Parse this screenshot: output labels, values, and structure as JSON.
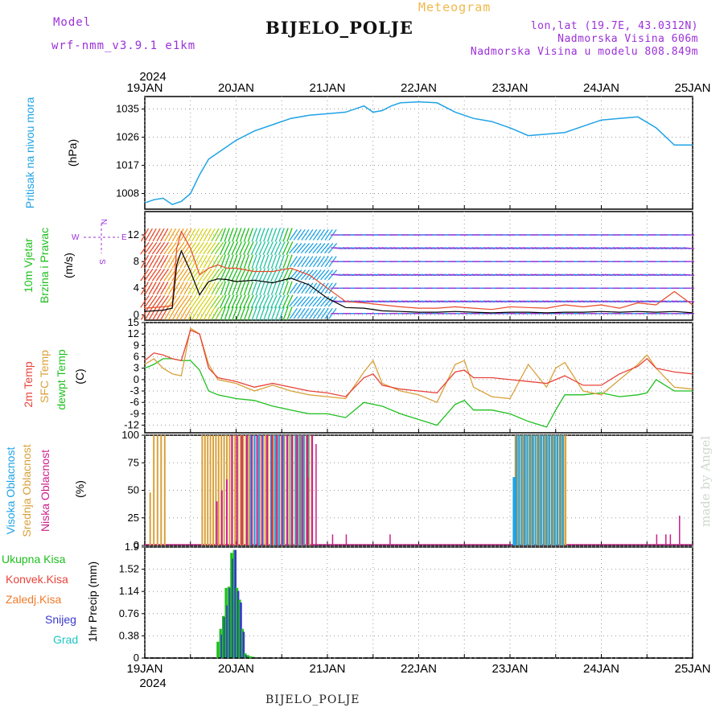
{
  "header": {
    "model_label": "Model",
    "model_name": "wrf-nmm_v3.9.1  e1km",
    "title": "BIJELO_POLJE",
    "meteogram_label": "Meteogram",
    "lonlat": "lon,lat (19.7E, 43.0312N)",
    "elevation": "Nadmorska Visina 606m",
    "model_elevation": "Nadmorska Visina u modelu 808.849m",
    "footer_station": "BIJELO_POLJE",
    "credit": "made by Angel"
  },
  "colors": {
    "pressure": "#1fa3e6",
    "temp2m": "#e8433a",
    "sfc": "#d9a13a",
    "dewpt": "#1fbf1f",
    "high_cloud": "#1fa3e6",
    "mid_cloud": "#d9a13a",
    "low_cloud": "#cc1f8c",
    "total_precip": "#1fbf1f",
    "snow": "#3838d0",
    "hail": "#1fc4c4",
    "wind_speed": "#000000",
    "gust": "#e84a2a",
    "purple_text": "#9b30d9"
  },
  "time_axis": {
    "year": "2024",
    "day_labels": [
      "19JAN",
      "20JAN",
      "21JAN",
      "22JAN",
      "23JAN",
      "24JAN",
      "25JAN"
    ]
  },
  "chart_data": [
    {
      "type": "line",
      "panel": "pressure",
      "ylabel_lines": [
        "Pritisak na nivou mora",
        "(hPa)"
      ],
      "yticks": [
        "1035",
        "1026",
        "1017",
        "1008"
      ],
      "ylim": [
        1003,
        1039
      ],
      "x_days": [
        0,
        0.1,
        0.2,
        0.3,
        0.4,
        0.5,
        0.6,
        0.7,
        0.8,
        0.9,
        1.0,
        1.2,
        1.4,
        1.6,
        1.8,
        2.0,
        2.2,
        2.4,
        2.5,
        2.6,
        2.7,
        2.8,
        3.0,
        3.2,
        3.4,
        3.6,
        3.8,
        4.0,
        4.2,
        4.4,
        4.6,
        4.8,
        5.0,
        5.2,
        5.4,
        5.6,
        5.8,
        6.0
      ],
      "series": [
        {
          "values": [
            1005,
            1006,
            1006.5,
            1004.5,
            1005.5,
            1008,
            1014,
            1019,
            1021,
            1023,
            1025,
            1028,
            1030,
            1032,
            1033,
            1033.5,
            1034,
            1036,
            1034,
            1034.5,
            1036,
            1037,
            1037.3,
            1037,
            1034,
            1032,
            1031,
            1029,
            1026.5,
            1027,
            1027.5,
            1029.5,
            1031.5,
            1032,
            1032.5,
            1029,
            1023.5,
            1023.5
          ]
        }
      ]
    },
    {
      "type": "line",
      "panel": "wind",
      "ylabel_lines": [
        "10m Vjetar",
        "Brzina i Pravac",
        "(m/s)"
      ],
      "compass": [
        "N",
        "E",
        "W",
        "S"
      ],
      "yticks": [
        "12",
        "8",
        "4",
        "0"
      ],
      "ylim": [
        -0.8,
        15.5
      ],
      "x_days": [
        0,
        0.2,
        0.3,
        0.35,
        0.4,
        0.5,
        0.6,
        0.7,
        0.8,
        0.9,
        1.0,
        1.2,
        1.4,
        1.6,
        1.8,
        2.0,
        2.2,
        2.4,
        2.6,
        2.8,
        3.0,
        3.2,
        3.4,
        3.6,
        3.8,
        4.0,
        4.2,
        4.4,
        4.6,
        4.8,
        5.0,
        5.2,
        5.4,
        5.6,
        5.8,
        6.0
      ],
      "series": [
        {
          "values": [
            0.5,
            0.7,
            1.0,
            7.5,
            9.6,
            6.5,
            3.0,
            5.0,
            5.4,
            5.3,
            5.0,
            5.2,
            4.8,
            5.5,
            4.5,
            2.5,
            1.1,
            1.0,
            0.6,
            0.5,
            0.4,
            0.4,
            0.5,
            0.4,
            0.3,
            0.4,
            0.4,
            0.3,
            0.4,
            0.4,
            0.5,
            0.4,
            0.5,
            0.4,
            0.5,
            0.3
          ]
        },
        {
          "values": [
            1.0,
            1.2,
            1.4,
            10,
            12.5,
            10,
            6,
            7,
            7.5,
            7,
            7,
            6.5,
            6.5,
            7,
            6,
            4,
            2,
            1.8,
            1.5,
            1.2,
            1.0,
            1.0,
            1.2,
            1.0,
            0.8,
            1.2,
            1.1,
            1.0,
            1.5,
            1.2,
            1.5,
            1.0,
            1.8,
            1.5,
            3.5,
            1.5
          ]
        }
      ]
    },
    {
      "type": "line",
      "panel": "temperature",
      "ylabel_lines": [
        "2m Temp",
        "SFC Temp",
        "dewpt Temp",
        "(C)"
      ],
      "yticks": [
        "15",
        "12",
        "9",
        "6",
        "3",
        "0",
        "-3",
        "-6",
        "-9",
        "-12"
      ],
      "ylim": [
        -14,
        15
      ],
      "x_days": [
        0,
        0.1,
        0.2,
        0.3,
        0.4,
        0.5,
        0.6,
        0.7,
        0.8,
        1.0,
        1.2,
        1.4,
        1.6,
        1.8,
        2.0,
        2.2,
        2.4,
        2.5,
        2.6,
        2.8,
        3.0,
        3.2,
        3.4,
        3.5,
        3.6,
        3.8,
        4.0,
        4.2,
        4.4,
        4.5,
        4.6,
        4.8,
        5.0,
        5.2,
        5.4,
        5.5,
        5.6,
        5.8,
        6.0
      ],
      "series": [
        {
          "values": [
            5,
            7,
            6.5,
            5.5,
            5,
            13,
            12,
            3,
            0.5,
            -0.5,
            -2,
            -1,
            -2,
            -3,
            -3.5,
            -4.5,
            0.5,
            1.5,
            -1.5,
            -2.5,
            -3,
            -3.5,
            2,
            2.5,
            0.5,
            0.5,
            0,
            -0.5,
            -1,
            0,
            1,
            -1.5,
            -1.5,
            1.5,
            3.5,
            5.5,
            3,
            2,
            1.5
          ]
        },
        {
          "values": [
            4,
            5.5,
            3,
            1.5,
            1,
            13.5,
            12,
            4,
            0,
            -1,
            -3,
            -1.5,
            -3,
            -4,
            -4.5,
            -5,
            2,
            5,
            -1,
            -3,
            -4,
            -6,
            4,
            5,
            -2,
            -4.5,
            -5,
            4,
            -2,
            3,
            4.5,
            -3,
            -4,
            0,
            4,
            6.5,
            3,
            -2,
            -2.5
          ]
        },
        {
          "values": [
            3,
            4,
            5.5,
            5.5,
            5,
            5,
            2.5,
            -3,
            -4,
            -5,
            -5.5,
            -7,
            -8,
            -9,
            -9,
            -10,
            -6,
            -6.5,
            -7,
            -9,
            -10.5,
            -12,
            -6.5,
            -5.5,
            -8,
            -8,
            -9,
            -11,
            -12.5,
            -8,
            -4,
            -4,
            -3.5,
            -4.5,
            -4,
            -3.5,
            0,
            -3,
            -3
          ]
        }
      ]
    },
    {
      "type": "bar",
      "panel": "cloud_cover",
      "ylabel_lines": [
        "Visoka Oblacnost",
        "Srednja Oblacnost",
        "Niska Oblacnost",
        "(%)"
      ],
      "yticks": [
        "100",
        "75",
        "50",
        "25",
        "0"
      ],
      "ylim": [
        0,
        100
      ],
      "groups": [
        {
          "series": "Srednja Oblacnost",
          "x_start": 0.05,
          "x_end": 0.22,
          "step": 0.04,
          "values": [
            48,
            100,
            100,
            100,
            100
          ]
        },
        {
          "series": "Srednja Oblacnost",
          "x_start": 0.62,
          "x_end": 1.84,
          "step": 0.03,
          "values": [
            100
          ]
        },
        {
          "series": "Visoka Oblacnost",
          "x_start": 1.15,
          "x_end": 1.8,
          "step": 0.045,
          "values": [
            100
          ]
        },
        {
          "series": "Niska Oblacnost",
          "x_start": 0.78,
          "x_end": 1.85,
          "step": 0.055,
          "values": [
            40,
            50,
            60,
            100
          ]
        },
        {
          "series": "Srednja Oblacnost",
          "x_start": 4.05,
          "x_end": 4.62,
          "step": 0.022,
          "values": [
            100
          ]
        },
        {
          "series": "Visoka Oblacnost",
          "x_start": 4.03,
          "x_end": 4.58,
          "step": 0.03,
          "values": [
            62,
            100
          ]
        }
      ],
      "isolated_low": [
        [
          2.05,
          10
        ],
        [
          2.2,
          10
        ],
        [
          2.68,
          10
        ],
        [
          5.6,
          10
        ],
        [
          5.7,
          10
        ],
        [
          5.75,
          10
        ],
        [
          5.85,
          27
        ],
        [
          1.87,
          92
        ],
        [
          1.78,
          62
        ]
      ]
    },
    {
      "type": "bar",
      "panel": "precipitation",
      "ylabel_lines": [
        "Ukupna Kisa",
        "Konvek.Kisa",
        "Zaledj.Kisa",
        "Snijeg",
        "Grad",
        "1hr Precip (mm)"
      ],
      "yticks": [
        "1.9",
        "1.52",
        "1.14",
        "0.76",
        "0.38",
        "0"
      ],
      "ylim": [
        0,
        1.9
      ],
      "x_days": [
        0.8,
        0.83,
        0.86,
        0.89,
        0.92,
        0.95,
        0.98,
        1.01,
        1.04,
        1.07,
        1.1,
        1.13,
        1.16,
        1.19
      ],
      "series": [
        {
          "name": "Ukupna Kisa",
          "values": [
            0.28,
            0.5,
            0.72,
            1.2,
            1.22,
            1.8,
            1.85,
            1.2,
            1.0,
            0.5,
            0.08,
            0.05,
            0.03,
            0.02
          ]
        },
        {
          "name": "Snijeg",
          "values": [
            0,
            0.4,
            0.7,
            0.9,
            1.2,
            1.7,
            1.85,
            1.15,
            0.95,
            0.45,
            0.05,
            0,
            0,
            0
          ]
        }
      ]
    }
  ]
}
